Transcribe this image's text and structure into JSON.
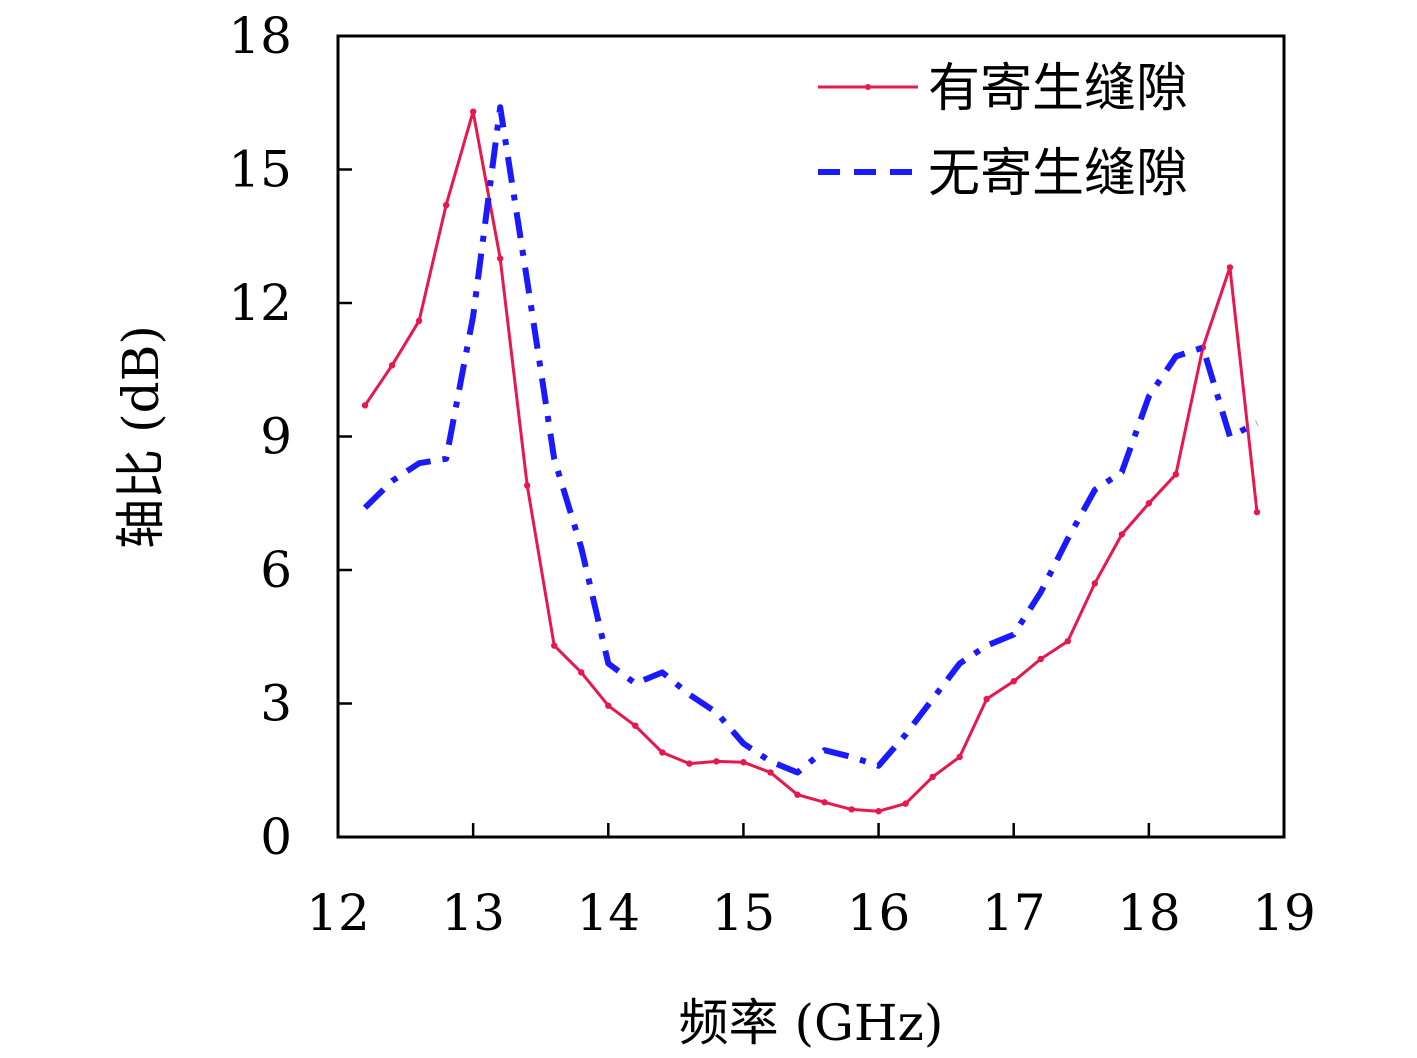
{
  "chart_data": {
    "type": "line",
    "xlabel": "频率 (GHz)",
    "ylabel": "轴比 (dB)",
    "xlim": [
      12,
      19
    ],
    "ylim": [
      0,
      18
    ],
    "xticks": [
      "12",
      "13",
      "14",
      "15",
      "16",
      "17",
      "18",
      "19"
    ],
    "yticks": [
      "0",
      "3",
      "6",
      "9",
      "12",
      "15",
      "18"
    ],
    "grid": false,
    "legend_position": "top-right",
    "series": [
      {
        "name": "有寄生缝隙",
        "color": "#e8174d",
        "style": "solid-with-markers",
        "x": [
          12.2,
          12.4,
          12.6,
          12.8,
          13.0,
          13.2,
          13.4,
          13.6,
          13.8,
          14.0,
          14.2,
          14.4,
          14.6,
          14.8,
          15.0,
          15.2,
          15.4,
          15.6,
          15.8,
          16.0,
          16.2,
          16.4,
          16.6,
          16.8,
          17.0,
          17.2,
          17.4,
          17.6,
          17.8,
          18.0,
          18.2,
          18.4,
          18.6,
          18.8
        ],
        "y": [
          9.7,
          10.6,
          11.6,
          14.2,
          16.3,
          13.0,
          7.9,
          4.3,
          3.7,
          2.95,
          2.5,
          1.9,
          1.65,
          1.7,
          1.68,
          1.45,
          0.95,
          0.78,
          0.62,
          0.58,
          0.75,
          1.35,
          1.8,
          3.1,
          3.5,
          4.0,
          4.4,
          5.7,
          6.8,
          7.5,
          8.15,
          11.0,
          12.8,
          7.3
        ]
      },
      {
        "name": "无寄生缝隙",
        "color": "#1a1aff",
        "style": "dash-dot",
        "x": [
          12.2,
          12.4,
          12.6,
          12.8,
          13.0,
          13.2,
          13.4,
          13.6,
          13.8,
          14.0,
          14.2,
          14.4,
          14.6,
          14.8,
          15.0,
          15.2,
          15.4,
          15.6,
          15.8,
          16.0,
          16.2,
          16.4,
          16.6,
          16.8,
          17.0,
          17.2,
          17.4,
          17.6,
          17.8,
          18.0,
          18.2,
          18.4,
          18.6,
          18.8
        ],
        "y": [
          7.4,
          8.0,
          8.4,
          8.5,
          11.7,
          16.4,
          12.5,
          8.5,
          6.5,
          3.9,
          3.45,
          3.7,
          3.2,
          2.8,
          2.1,
          1.7,
          1.45,
          1.95,
          1.8,
          1.6,
          2.3,
          3.1,
          3.9,
          4.3,
          4.55,
          5.5,
          6.7,
          7.8,
          8.2,
          9.9,
          10.8,
          11.0,
          9.0,
          9.3
        ]
      }
    ]
  }
}
